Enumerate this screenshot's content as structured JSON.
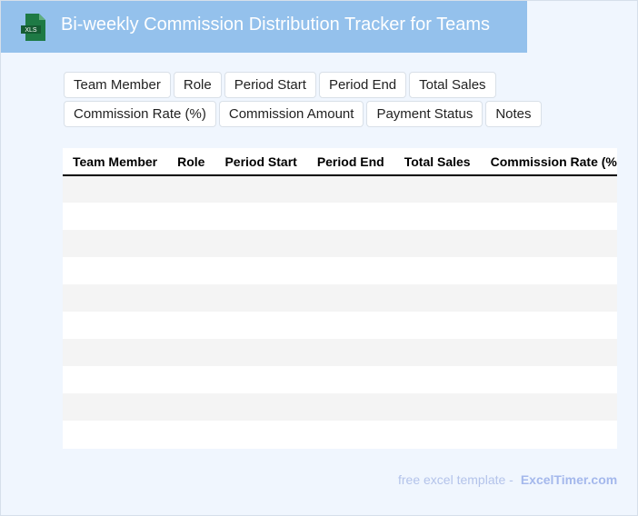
{
  "header": {
    "title": "Bi-weekly Commission Distribution Tracker for Teams",
    "logo_text": "XLS",
    "logo_color": "#1e7a45",
    "background": "#94c1ec"
  },
  "columns": [
    "Team Member",
    "Role",
    "Period Start",
    "Period End",
    "Total Sales",
    "Commission Rate (%)",
    "Commission Amount",
    "Payment Status",
    "Notes"
  ],
  "rows": 10,
  "footer": {
    "text": "free excel template -",
    "brand": "ExcelTimer.com"
  }
}
